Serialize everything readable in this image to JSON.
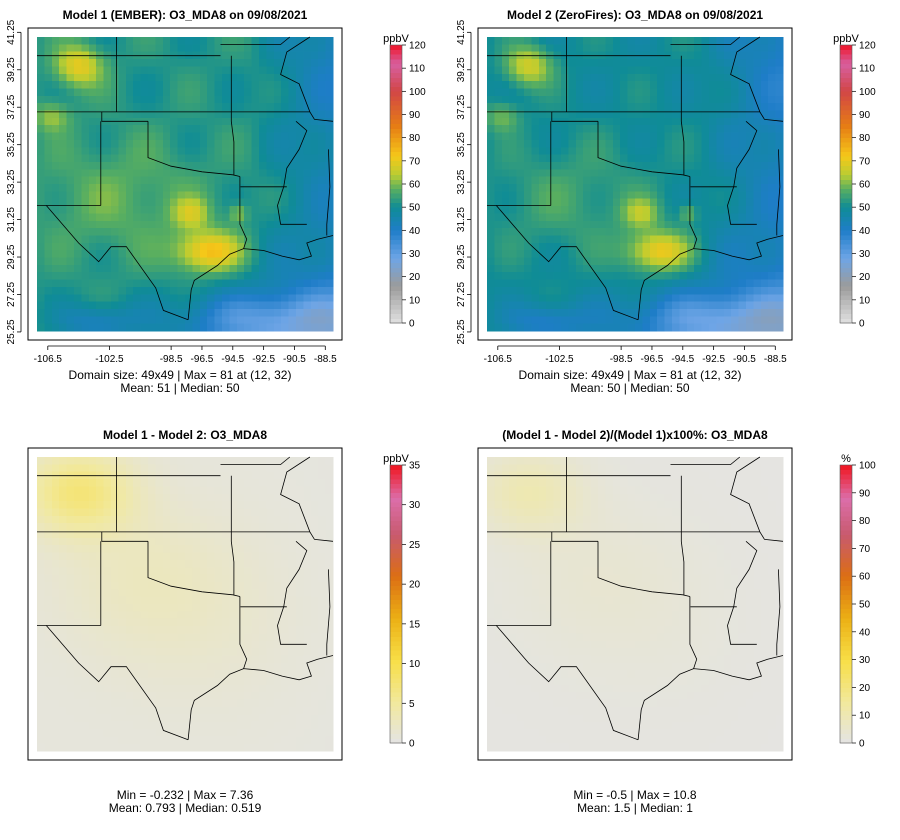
{
  "chart_data": [
    {
      "type": "heatmap",
      "title": "Model 1 (EMBER): O3_MDA8 on 09/08/2021",
      "unit": "ppbV",
      "x_ticks": [
        "-106.5",
        "-102.5",
        "-98.5",
        "-96.5",
        "-94.5",
        "-92.5",
        "-90.5",
        "-88.5"
      ],
      "x_tick_values": [
        -106.5,
        -102.5,
        -98.5,
        -96.5,
        -94.5,
        -92.5,
        -90.5,
        -88.5
      ],
      "y_ticks": [
        "25.25",
        "27.25",
        "29.25",
        "31.25",
        "33.25",
        "35.25",
        "37.25",
        "39.25",
        "41.25"
      ],
      "y_tick_values": [
        25.25,
        27.25,
        29.25,
        31.25,
        33.25,
        35.25,
        37.25,
        39.25,
        41.25
      ],
      "colorbar_ticks": [
        0,
        10,
        20,
        30,
        40,
        50,
        60,
        70,
        80,
        90,
        100,
        110,
        120
      ],
      "colorbar_range": [
        0,
        120
      ],
      "colorbar_kind": "o3",
      "field": "o3",
      "scale": 1.0,
      "stats_line1": "Domain size: 49x49 | Max = 81 at (12, 32)",
      "stats_line2": "Mean: 51 |  Median: 50"
    },
    {
      "type": "heatmap",
      "title": "Model 2 (ZeroFires): O3_MDA8 on 09/08/2021",
      "unit": "ppbV",
      "x_ticks": [
        "-106.5",
        "-102.5",
        "-98.5",
        "-96.5",
        "-94.5",
        "-92.5",
        "-90.5",
        "-88.5"
      ],
      "x_tick_values": [
        -106.5,
        -102.5,
        -98.5,
        -96.5,
        -94.5,
        -92.5,
        -90.5,
        -88.5
      ],
      "y_ticks": [
        "25.25",
        "27.25",
        "29.25",
        "31.25",
        "33.25",
        "35.25",
        "37.25",
        "39.25",
        "41.25"
      ],
      "y_tick_values": [
        25.25,
        27.25,
        29.25,
        31.25,
        33.25,
        35.25,
        37.25,
        39.25,
        41.25
      ],
      "colorbar_ticks": [
        0,
        10,
        20,
        30,
        40,
        50,
        60,
        70,
        80,
        90,
        100,
        110,
        120
      ],
      "colorbar_range": [
        0,
        120
      ],
      "colorbar_kind": "o3",
      "field": "o3",
      "scale": 0.97,
      "stats_line1": "Domain size: 49x49 | Max = 81 at (12, 32)",
      "stats_line2": "Mean: 50 |  Median: 50"
    },
    {
      "type": "heatmap",
      "title": "Model 1 - Model 2: O3_MDA8",
      "unit": "ppbV",
      "colorbar_ticks": [
        0,
        5,
        10,
        15,
        20,
        25,
        30,
        35
      ],
      "colorbar_range": [
        0,
        35
      ],
      "colorbar_kind": "diff",
      "field": "diff",
      "scale": 1.0,
      "stats_line1": "Min = -0.232 | Max = 7.36",
      "stats_line2": "Mean: 0.793 |  Median: 0.519"
    },
    {
      "type": "heatmap",
      "title": "(Model 1 - Model 2)/(Model 1)x100%: O3_MDA8",
      "unit": "%",
      "colorbar_ticks": [
        0,
        10,
        20,
        30,
        40,
        50,
        60,
        70,
        80,
        90,
        100
      ],
      "colorbar_range": [
        0,
        100
      ],
      "colorbar_kind": "diff",
      "field": "diff",
      "scale": 1.4,
      "stats_line1": "Min = -0.5 | Max = 10.8",
      "stats_line2": "Mean: 1.5 |  Median: 1"
    }
  ]
}
